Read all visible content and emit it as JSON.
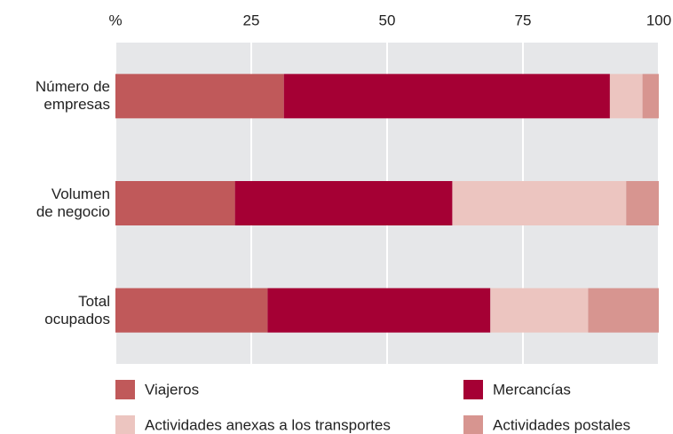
{
  "chart_data": {
    "type": "stacked_barh",
    "categories": [
      "Número de\nempresas",
      "Volumen\nde negocio",
      "Total\nocupados"
    ],
    "series": [
      {
        "name": "Viajeros",
        "color": "#c0595a",
        "values": [
          31,
          22,
          28
        ]
      },
      {
        "name": "Mercancías",
        "color": "#a50034",
        "values": [
          60,
          40,
          41
        ]
      },
      {
        "name": "Actividades anexas a los transportes",
        "color": "#ecc5c0",
        "values": [
          6,
          32,
          18
        ]
      },
      {
        "name": "Actividades postales",
        "color": "#d79590",
        "values": [
          3,
          6,
          13
        ]
      }
    ],
    "xlim": [
      0,
      100
    ],
    "xticks": [
      {
        "value": 0,
        "label": "%"
      },
      25,
      50,
      75,
      100
    ],
    "grid": true,
    "legend": "bottom"
  }
}
